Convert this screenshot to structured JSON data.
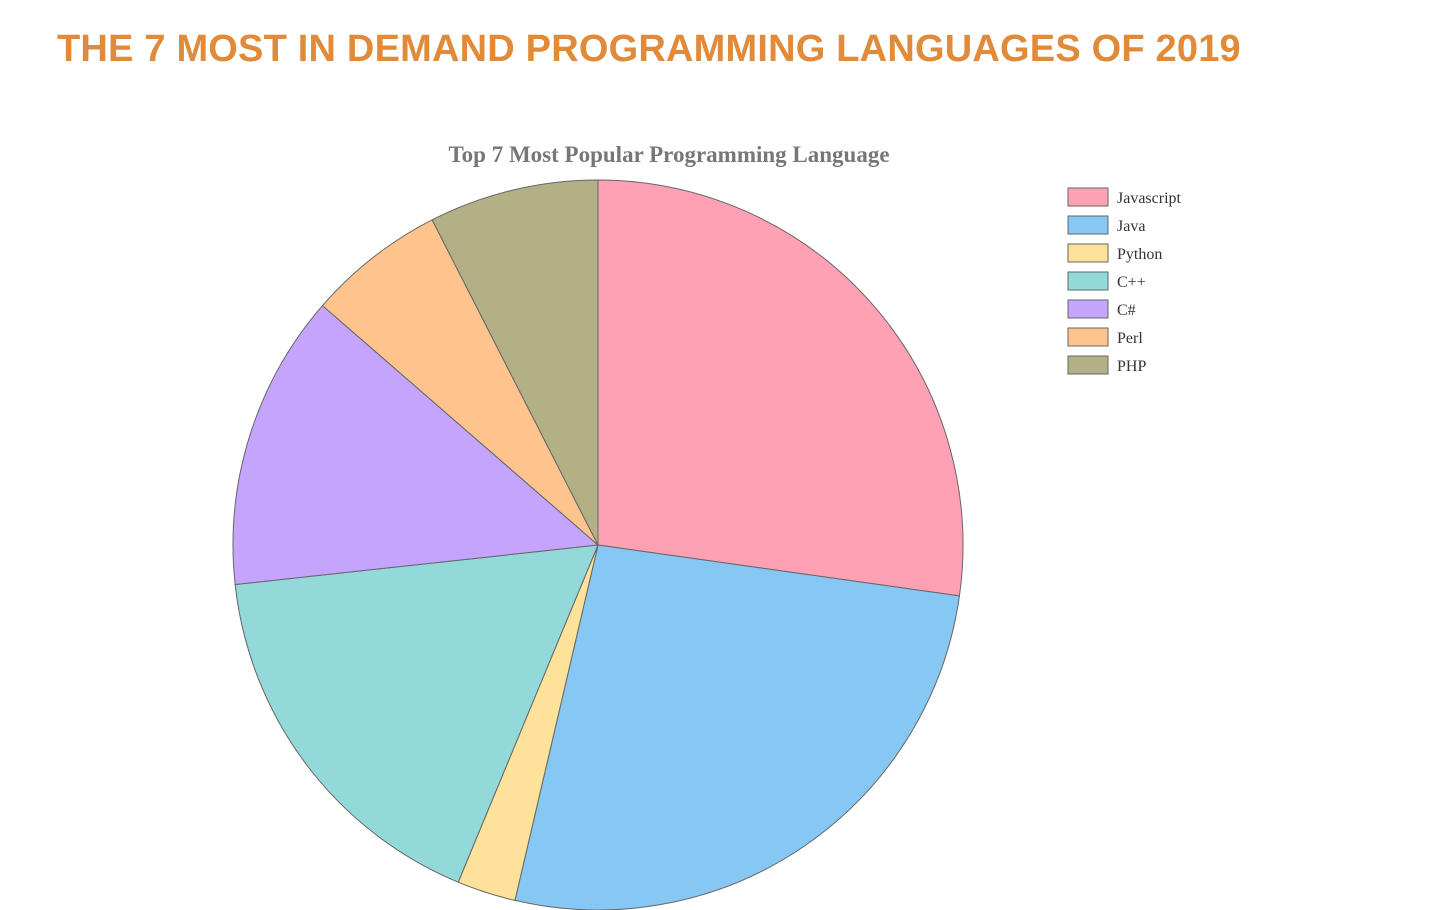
{
  "page": {
    "title": "THE 7 MOST IN DEMAND PROGRAMMING LANGUAGES OF 2019"
  },
  "chart_data": {
    "type": "pie",
    "title": "Top 7 Most Popular Programming Language",
    "legend_position": "top-right",
    "categories": [
      "Javascript",
      "Java",
      "Python",
      "C++",
      "C#",
      "Perl",
      "PHP"
    ],
    "values": [
      27.2,
      26.4,
      2.6,
      17.0,
      13.1,
      6.1,
      7.5
    ],
    "colors": [
      "#ffa1b5",
      "#86c7f3",
      "#ffe29a",
      "#93d9d9",
      "#c4a4fd",
      "#ffc48d",
      "#b3b086"
    ],
    "stroke_color": "#666666"
  }
}
